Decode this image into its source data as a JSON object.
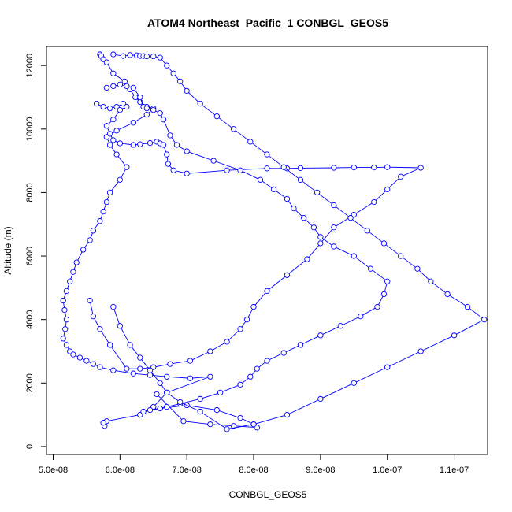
{
  "chart_data": {
    "type": "scatter",
    "title": "ATOM4 Northeast_Pacific_1 CONBGL_GEOS5",
    "xlabel": "CONBGL_GEOS5",
    "ylabel": "Altitude (m)",
    "xlim": [
      4.9e-08,
      1.15e-07
    ],
    "ylim": [
      -250,
      12600
    ],
    "xticks": [
      5e-08,
      6e-08,
      7e-08,
      8e-08,
      9e-08,
      1e-07,
      1.1e-07
    ],
    "xtick_labels": [
      "5.0e-08",
      "6.0e-08",
      "7.0e-08",
      "8.0e-08",
      "9.0e-08",
      "1.0e-07",
      "1.1e-07"
    ],
    "yticks": [
      0,
      2000,
      4000,
      6000,
      8000,
      10000,
      12000
    ],
    "ytick_labels": [
      "0",
      "2000",
      "4000",
      "6000",
      "8000",
      "10000",
      "12000"
    ],
    "color": "#0000ff",
    "grid": false,
    "legend": "none",
    "series": [
      {
        "x": [
          5.7e-08,
          5.72e-08,
          5.75e-08,
          5.8e-08,
          5.9e-08,
          6.07e-08,
          6.15e-08,
          6.23e-08,
          6.3e-08,
          6.4e-08,
          6.5e-08,
          6.4e-08,
          6.2e-08,
          5.95e-08,
          5.8e-08,
          5.85e-08,
          5.95e-08,
          6.1e-08,
          6e-08,
          5.85e-08,
          5.8e-08,
          5.75e-08,
          5.7e-08,
          5.6e-08,
          5.55e-08,
          5.45e-08,
          5.35e-08,
          5.3e-08,
          5.25e-08,
          5.2e-08,
          5.15e-08,
          5.17e-08,
          5.2e-08,
          5.18e-08,
          5.15e-08,
          5.2e-08,
          5.25e-08,
          5.3e-08,
          5.4e-08,
          5.5e-08,
          5.6e-08,
          5.7e-08,
          5.9e-08,
          6.2e-08,
          6.45e-08,
          6.7e-08,
          7.05e-08,
          7.35e-08,
          6.7e-08,
          6.5e-08,
          6.3e-08,
          5.8e-08,
          5.77e-08,
          5.75e-08
        ],
        "y": [
          12350,
          12300,
          12200,
          12100,
          11750,
          11500,
          11250,
          11000,
          10850,
          10700,
          10650,
          10450,
          10200,
          9950,
          9750,
          9500,
          9200,
          8800,
          8400,
          8000,
          7700,
          7400,
          7100,
          6800,
          6500,
          6200,
          5800,
          5500,
          5200,
          4900,
          4600,
          4300,
          4000,
          3700,
          3400,
          3200,
          3000,
          2900,
          2800,
          2700,
          2600,
          2500,
          2400,
          2300,
          2250,
          2200,
          2150,
          2200,
          1700,
          1250,
          1000,
          800,
          650,
          750
        ]
      },
      {
        "x": [
          5.65e-08,
          5.75e-08,
          5.85e-08,
          5.95e-08,
          6.05e-08,
          6.1e-08,
          6e-08,
          5.9e-08,
          5.8e-08,
          5.85e-08,
          5.9e-08,
          6e-08,
          6.2e-08,
          6.3e-08,
          6.45e-08,
          6.55e-08,
          6.6e-08,
          6.65e-08,
          6.7e-08,
          6.72e-08,
          6.8e-08,
          7e-08,
          7.6e-08,
          8.2e-08,
          8.5e-08,
          8.7e-08,
          9.2e-08,
          9.5e-08,
          9.8e-08,
          1e-07,
          1.05e-07,
          1.02e-07,
          1e-07,
          9.8e-08,
          9.5e-08,
          9.2e-08,
          9e-08,
          8.8e-08,
          8.5e-08,
          8.2e-08,
          8e-08,
          7.9e-08,
          7.8e-08,
          7.6e-08,
          7.35e-08,
          7.05e-08,
          6.75e-08,
          6.5e-08,
          6.3e-08,
          6.1e-08,
          5.85e-08,
          5.7e-08,
          5.6e-08,
          5.55e-08
        ],
        "y": [
          10800,
          10700,
          10650,
          10700,
          10800,
          10700,
          10600,
          10300,
          10100,
          9850,
          9650,
          9550,
          9500,
          9520,
          9560,
          9600,
          9550,
          9500,
          9200,
          8900,
          8700,
          8600,
          8700,
          8760,
          8760,
          8770,
          8780,
          8790,
          8790,
          8800,
          8780,
          8500,
          8100,
          7700,
          7300,
          6900,
          6400,
          5900,
          5400,
          4900,
          4400,
          4000,
          3700,
          3300,
          3000,
          2700,
          2600,
          2500,
          2450,
          2450,
          3200,
          3700,
          4100,
          4600
        ]
      },
      {
        "x": [
          5.8e-08,
          5.9e-08,
          6e-08,
          6.1e-08,
          6.2e-08,
          6.3e-08,
          6.35e-08,
          6.4e-08,
          6.5e-08,
          6.6e-08,
          6.65e-08,
          6.75e-08,
          6.85e-08,
          7e-08,
          7.4e-08,
          7.8e-08,
          8.1e-08,
          8.3e-08,
          8.5e-08,
          8.6e-08,
          8.75e-08,
          8.9e-08,
          9e-08,
          9.2e-08,
          9.5e-08,
          9.75e-08,
          1e-07,
          9.95e-08,
          9.85e-08,
          9.6e-08,
          9.3e-08,
          9e-08,
          8.7e-08,
          8.45e-08,
          8.2e-08,
          8.05e-08,
          7.95e-08,
          7.8e-08,
          7.5e-08,
          7.2e-08,
          6.9e-08,
          6.7e-08,
          6.45e-08,
          6.35e-08,
          6.6e-08,
          7e-08,
          7.45e-08,
          7.8e-08,
          8e-08,
          8.05e-08,
          7.7e-08,
          7.35e-08,
          6.95e-08,
          6.55e-08
        ],
        "y": [
          11300,
          11350,
          11400,
          11350,
          11300,
          11000,
          10700,
          10650,
          10600,
          10500,
          10300,
          9800,
          9500,
          9300,
          9000,
          8700,
          8400,
          8100,
          7800,
          7500,
          7200,
          6900,
          6600,
          6300,
          6000,
          5600,
          5200,
          4800,
          4400,
          4100,
          3800,
          3500,
          3200,
          2950,
          2700,
          2450,
          2200,
          1950,
          1700,
          1500,
          1350,
          1250,
          1150,
          1100,
          1200,
          1300,
          1150,
          900,
          700,
          600,
          650,
          700,
          800,
          1650
        ]
      },
      {
        "x": [
          5.9e-08,
          6.05e-08,
          6.15e-08,
          6.25e-08,
          6.3e-08,
          6.35e-08,
          6.4e-08,
          6.5e-08,
          6.6e-08,
          6.7e-08,
          6.8e-08,
          6.9e-08,
          7e-08,
          7.2e-08,
          7.45e-08,
          7.7e-08,
          7.95e-08,
          8.2e-08,
          8.45e-08,
          8.7e-08,
          8.95e-08,
          9.2e-08,
          9.45e-08,
          9.7e-08,
          9.95e-08,
          1.02e-07,
          1.045e-07,
          1.065e-07,
          1.09e-07,
          1.12e-07,
          1.145e-07,
          1.1e-07,
          1.05e-07,
          1e-07,
          9.5e-08,
          9e-08,
          8.5e-08,
          8e-08,
          7.6e-08,
          7.2e-08,
          6.9e-08,
          6.7e-08,
          6.6e-08,
          6.45e-08,
          6.3e-08,
          6.15e-08,
          6e-08,
          5.9e-08
        ],
        "y": [
          12350,
          12300,
          12330,
          12320,
          12300,
          12300,
          12290,
          12290,
          12250,
          12000,
          11750,
          11500,
          11200,
          10800,
          10400,
          10000,
          9600,
          9200,
          8800,
          8400,
          8000,
          7600,
          7200,
          6800,
          6400,
          6000,
          5600,
          5200,
          4800,
          4400,
          4000,
          3500,
          3000,
          2500,
          2000,
          1500,
          1000,
          700,
          550,
          1100,
          1400,
          1700,
          2000,
          2400,
          2800,
          3200,
          3800,
          4400
        ]
      }
    ]
  }
}
